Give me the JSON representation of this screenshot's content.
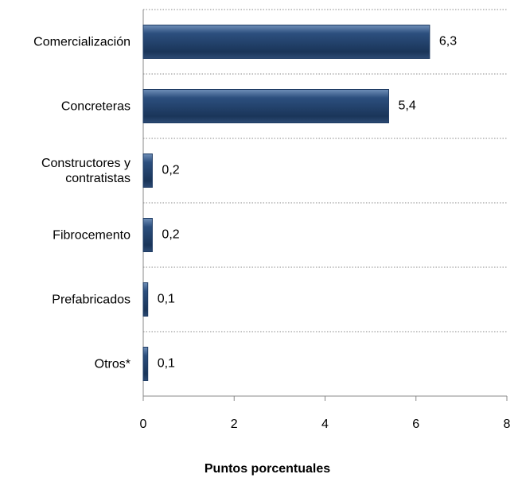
{
  "chart_data": {
    "type": "bar",
    "orientation": "horizontal",
    "categories": [
      "Comercialización",
      "Concreteras",
      "Constructores y contratistas",
      "Fibrocemento",
      "Prefabricados",
      "Otros*"
    ],
    "values": [
      6.3,
      5.4,
      0.2,
      0.2,
      0.1,
      0.1
    ],
    "value_labels": [
      "6,3",
      "5,4",
      "0,2",
      "0,2",
      "0,1",
      "0,1"
    ],
    "color": "#1f3c64",
    "xlim": [
      0,
      8
    ],
    "xticks": [
      0,
      2,
      4,
      6,
      8
    ],
    "xlabel": "Puntos porcentuales"
  }
}
